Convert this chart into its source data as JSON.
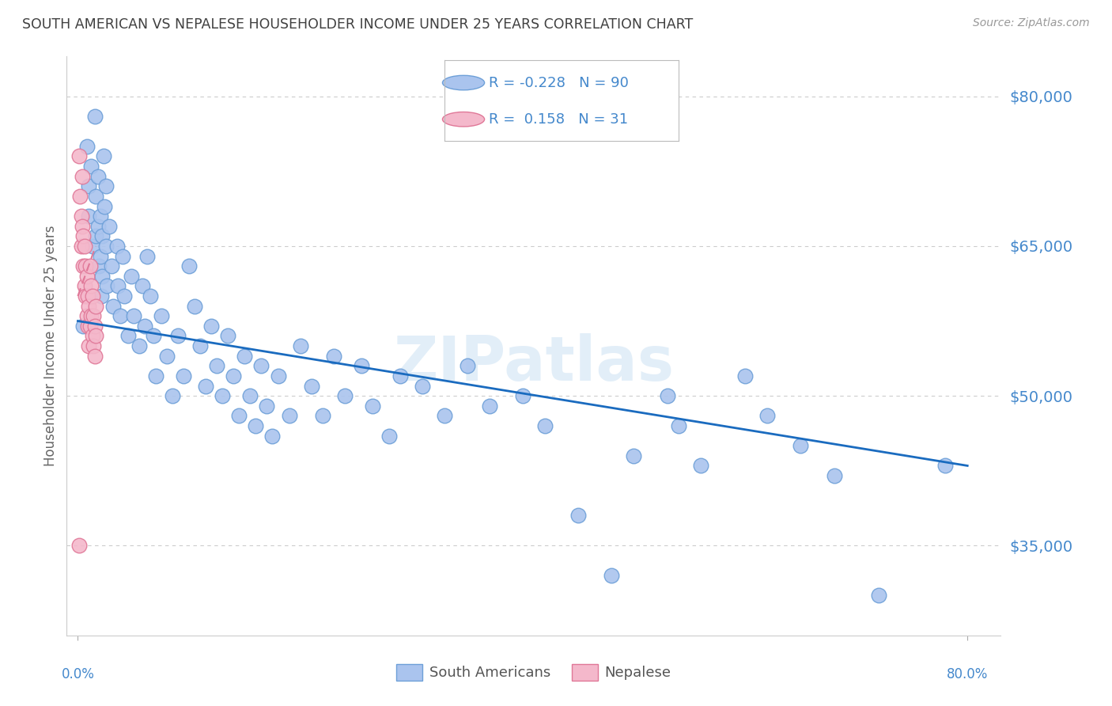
{
  "title": "SOUTH AMERICAN VS NEPALESE HOUSEHOLDER INCOME UNDER 25 YEARS CORRELATION CHART",
  "source": "Source: ZipAtlas.com",
  "ylabel": "Householder Income Under 25 years",
  "ytick_labels": [
    "$35,000",
    "$50,000",
    "$65,000",
    "$80,000"
  ],
  "ytick_values": [
    35000,
    50000,
    65000,
    80000
  ],
  "ylim": [
    26000,
    84000
  ],
  "xlim": [
    -0.01,
    0.83
  ],
  "watermark": "ZIPatlas",
  "legend": {
    "sa_label": "South Americans",
    "nep_label": "Nepalese",
    "sa_R": "-0.228",
    "sa_N": "90",
    "nep_R": "0.158",
    "nep_N": "31"
  },
  "sa_color": "#aac4ee",
  "sa_edge_color": "#6ea0d8",
  "nep_color": "#f4b8cb",
  "nep_edge_color": "#e07898",
  "sa_trend_color": "#1a6bbf",
  "nep_trend_color": "#e07898",
  "background_color": "#ffffff",
  "grid_color": "#cccccc",
  "title_color": "#404040",
  "right_axis_color": "#4488cc",
  "bottom_label_color": "#4488cc",
  "sa_x": [
    0.005,
    0.008,
    0.01,
    0.01,
    0.012,
    0.013,
    0.015,
    0.016,
    0.016,
    0.018,
    0.018,
    0.019,
    0.02,
    0.02,
    0.021,
    0.022,
    0.022,
    0.023,
    0.024,
    0.025,
    0.025,
    0.026,
    0.028,
    0.03,
    0.032,
    0.035,
    0.036,
    0.038,
    0.04,
    0.042,
    0.045,
    0.048,
    0.05,
    0.055,
    0.058,
    0.06,
    0.062,
    0.065,
    0.068,
    0.07,
    0.075,
    0.08,
    0.085,
    0.09,
    0.095,
    0.1,
    0.105,
    0.11,
    0.115,
    0.12,
    0.125,
    0.13,
    0.135,
    0.14,
    0.145,
    0.15,
    0.155,
    0.16,
    0.165,
    0.17,
    0.175,
    0.18,
    0.19,
    0.2,
    0.21,
    0.22,
    0.23,
    0.24,
    0.255,
    0.265,
    0.28,
    0.29,
    0.31,
    0.33,
    0.35,
    0.37,
    0.4,
    0.42,
    0.45,
    0.48,
    0.5,
    0.53,
    0.54,
    0.56,
    0.6,
    0.62,
    0.65,
    0.68,
    0.72,
    0.78
  ],
  "sa_y": [
    57000,
    75000,
    71000,
    68000,
    73000,
    65000,
    78000,
    70000,
    66000,
    72000,
    67000,
    63000,
    68000,
    64000,
    60000,
    66000,
    62000,
    74000,
    69000,
    71000,
    65000,
    61000,
    67000,
    63000,
    59000,
    65000,
    61000,
    58000,
    64000,
    60000,
    56000,
    62000,
    58000,
    55000,
    61000,
    57000,
    64000,
    60000,
    56000,
    52000,
    58000,
    54000,
    50000,
    56000,
    52000,
    63000,
    59000,
    55000,
    51000,
    57000,
    53000,
    50000,
    56000,
    52000,
    48000,
    54000,
    50000,
    47000,
    53000,
    49000,
    46000,
    52000,
    48000,
    55000,
    51000,
    48000,
    54000,
    50000,
    53000,
    49000,
    46000,
    52000,
    51000,
    48000,
    53000,
    49000,
    50000,
    47000,
    38000,
    32000,
    44000,
    50000,
    47000,
    43000,
    52000,
    48000,
    45000,
    42000,
    30000,
    43000
  ],
  "nep_x": [
    0.001,
    0.002,
    0.003,
    0.003,
    0.004,
    0.004,
    0.005,
    0.005,
    0.006,
    0.006,
    0.007,
    0.007,
    0.008,
    0.008,
    0.009,
    0.009,
    0.01,
    0.01,
    0.011,
    0.011,
    0.012,
    0.012,
    0.013,
    0.013,
    0.014,
    0.014,
    0.015,
    0.015,
    0.016,
    0.016,
    0.001
  ],
  "nep_y": [
    74000,
    70000,
    68000,
    65000,
    72000,
    67000,
    66000,
    63000,
    65000,
    61000,
    63000,
    60000,
    62000,
    58000,
    60000,
    57000,
    59000,
    55000,
    63000,
    57000,
    61000,
    58000,
    56000,
    60000,
    58000,
    55000,
    57000,
    54000,
    59000,
    56000,
    35000
  ],
  "sa_trend_x": [
    0.0,
    0.8
  ],
  "sa_trend_y": [
    57500,
    43000
  ],
  "nep_trend_x": [
    0.0,
    0.016
  ],
  "nep_trend_y": [
    60000,
    65000
  ]
}
